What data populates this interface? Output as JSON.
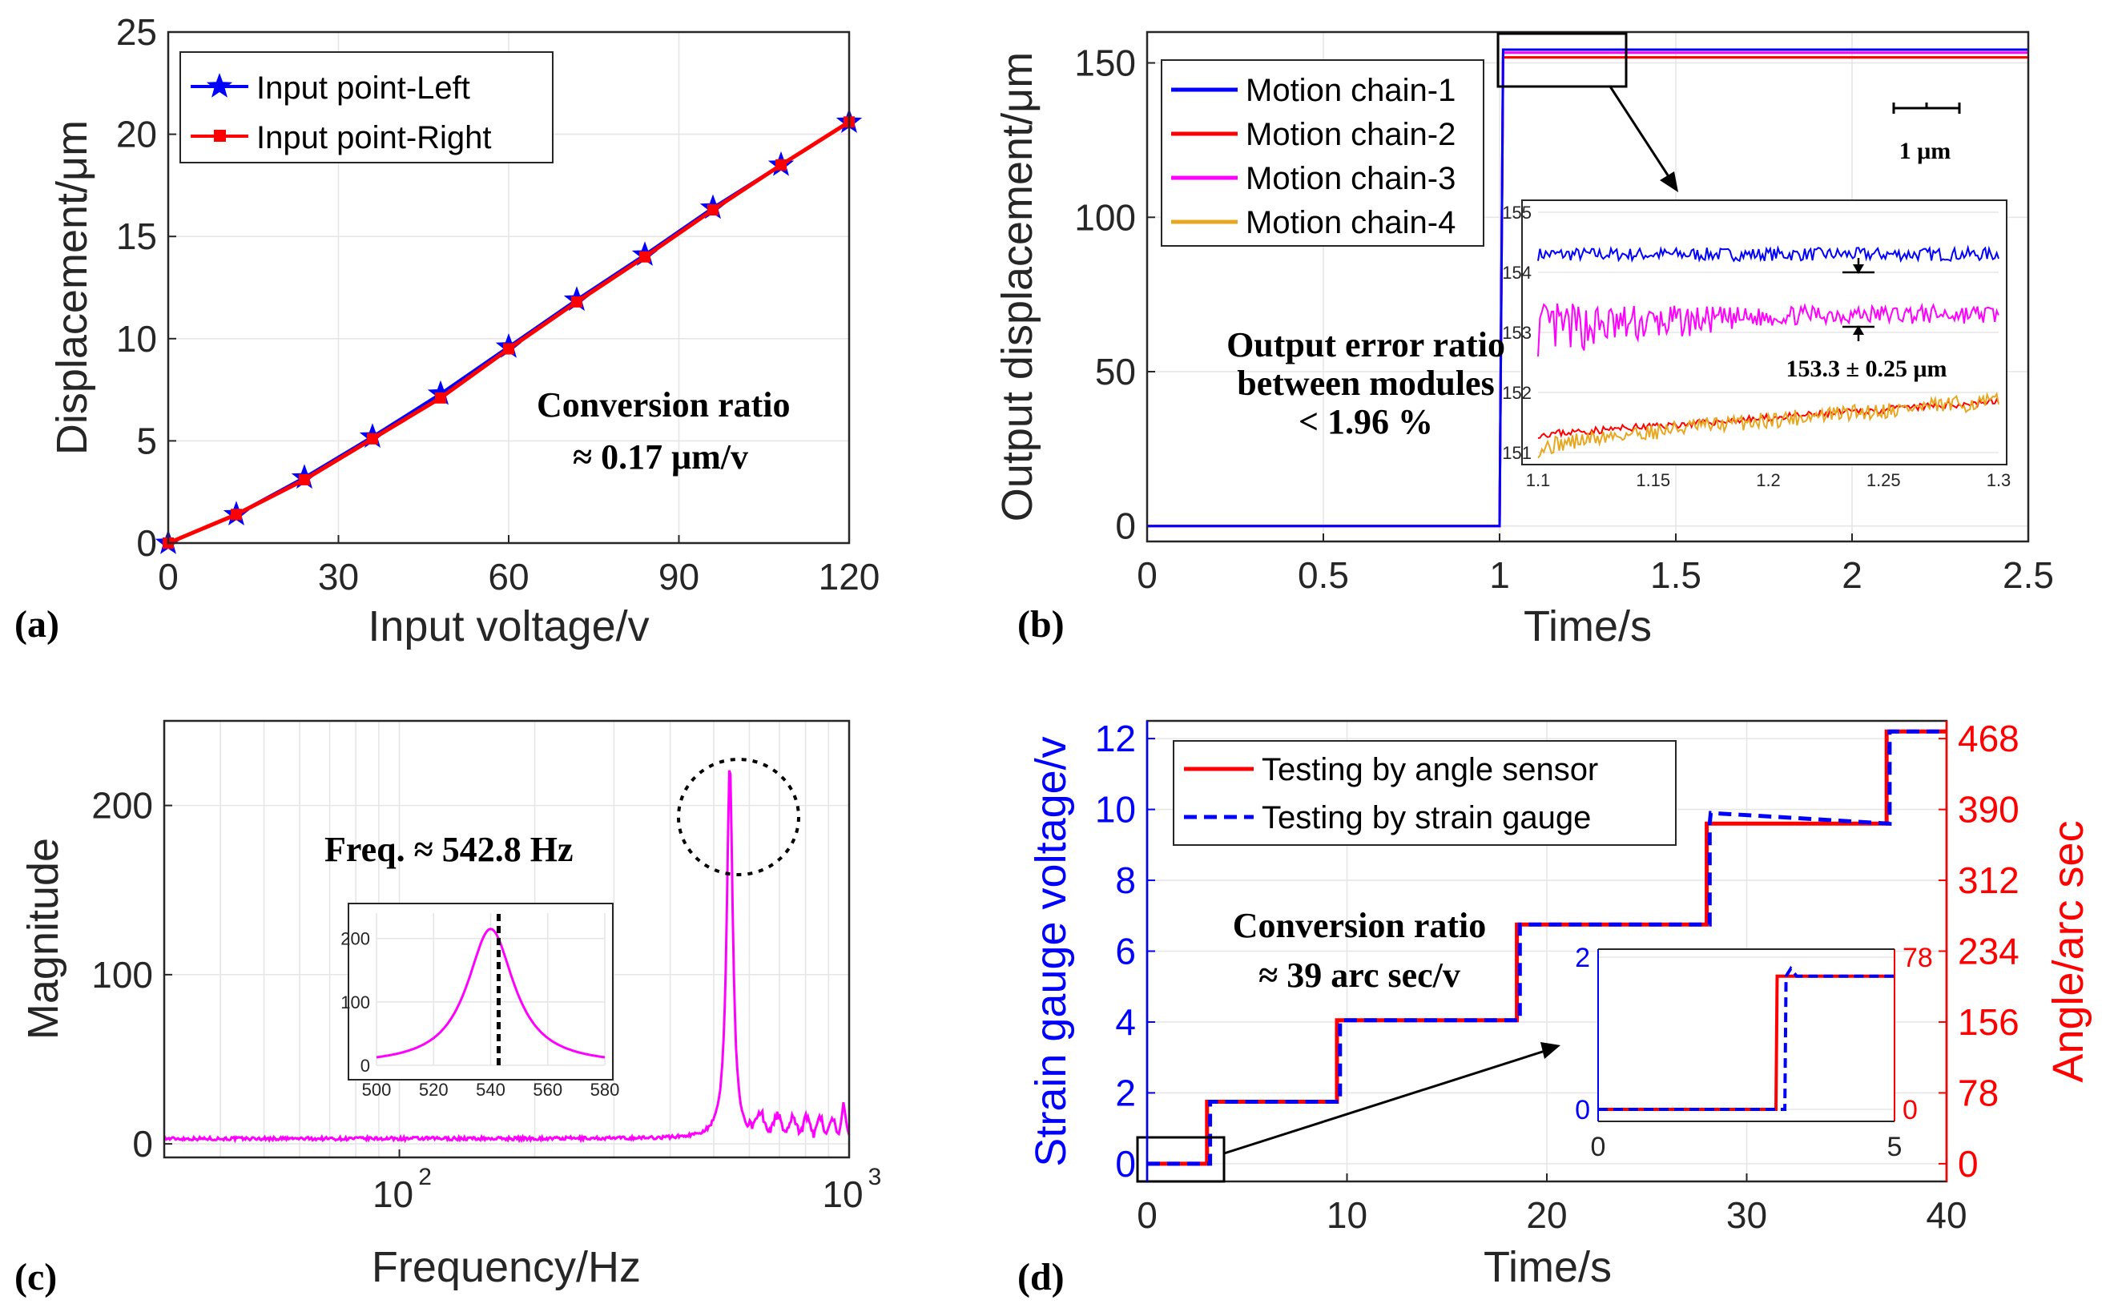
{
  "chart_data": [
    {
      "panel": "(a)",
      "type": "line",
      "xlabel": "Input voltage/v",
      "ylabel": "Displacement/μm",
      "xlim": [
        0,
        120
      ],
      "ylim": [
        0,
        25
      ],
      "xticks": [
        "0",
        "30",
        "60",
        "90",
        "120"
      ],
      "yticks": [
        "0",
        "5",
        "10",
        "15",
        "20",
        "25"
      ],
      "x": [
        0,
        12,
        24,
        36,
        48,
        60,
        72,
        84,
        96,
        108,
        120
      ],
      "series": [
        {
          "name": "Input point-Left",
          "color": "#0000ff",
          "marker": "star",
          "values": [
            0,
            1.4,
            3.2,
            5.2,
            7.3,
            9.6,
            11.9,
            14.1,
            16.4,
            18.5,
            20.6
          ]
        },
        {
          "name": "Input point-Right",
          "color": "#ff0000",
          "marker": "square",
          "values": [
            0,
            1.4,
            3.1,
            5.1,
            7.1,
            9.5,
            11.8,
            14.0,
            16.3,
            18.5,
            20.6
          ]
        }
      ],
      "annotation": [
        "Conversion ratio",
        "≈ 0.17 μm/v"
      ]
    },
    {
      "panel": "(b)",
      "type": "line",
      "xlabel": "Time/s",
      "ylabel": "Output displacement/μm",
      "xlim": [
        0,
        2.5
      ],
      "ylim": [
        -5,
        160
      ],
      "xticks": [
        "0",
        "0.5",
        "1",
        "1.5",
        "2",
        "2.5"
      ],
      "yticks": [
        "0",
        "50",
        "100",
        "150"
      ],
      "series": [
        {
          "name": "Motion chain-1",
          "color": "#0000ff",
          "final": 154.3
        },
        {
          "name": "Motion chain-2",
          "color": "#ff0000",
          "final": 151.8
        },
        {
          "name": "Motion chain-3",
          "color": "#ff00ff",
          "final": 153.3
        },
        {
          "name": "Motion chain-4",
          "color": "#e6a822",
          "final": 151.8
        }
      ],
      "step_time": 1.0,
      "scale_bar": "1 μm",
      "annotation": [
        "Output error ratio",
        "between modules",
        "< 1.96 %"
      ],
      "inset": {
        "xlim": [
          1.1,
          1.3
        ],
        "ylim": [
          151,
          155
        ],
        "xticks": [
          "1.1",
          "1.15",
          "1.2",
          "1.25",
          "1.3"
        ],
        "yticks": [
          "151",
          "152",
          "153",
          "154",
          "155"
        ],
        "label": "153.3 ± 0.25 μm"
      }
    },
    {
      "panel": "(c)",
      "type": "line",
      "xlabel": "Frequency/Hz",
      "ylabel": "Magnitude",
      "xscale": "log",
      "xlim": [
        30,
        1000
      ],
      "ylim": [
        -8,
        250
      ],
      "xticks": [
        "10",
        "10"
      ],
      "xtick_exp": [
        "2",
        "3"
      ],
      "yticks": [
        "0",
        "100",
        "200"
      ],
      "series": [
        {
          "name": "Magnitude",
          "color": "#ff00ff"
        }
      ],
      "peak": {
        "x": 542.8,
        "y": 225
      },
      "annotation": "Freq. ≈ 542.8 Hz",
      "inset": {
        "xlim": [
          500,
          580
        ],
        "ylim": [
          0,
          240
        ],
        "xticks": [
          "500",
          "520",
          "540",
          "560",
          "580"
        ],
        "yticks": [
          "0",
          "100",
          "200"
        ]
      }
    },
    {
      "panel": "(d)",
      "type": "line",
      "xlabel": "Time/s",
      "ylabel_left": "Strain gauge voltage/v",
      "ylabel_right": "Angle/arc sec",
      "xlim": [
        0,
        40
      ],
      "ylim_left": [
        -0.5,
        12.5
      ],
      "ylim_right": [
        -19.5,
        487.5
      ],
      "xticks": [
        "0",
        "10",
        "20",
        "30",
        "40"
      ],
      "yticks_left": [
        "0",
        "2",
        "4",
        "6",
        "8",
        "10",
        "12"
      ],
      "yticks_right": [
        "0",
        "78",
        "156",
        "234",
        "312",
        "390",
        "468"
      ],
      "steps": {
        "times": [
          0,
          3,
          9.5,
          18.5,
          28,
          37,
          40
        ],
        "levels": [
          0,
          1.75,
          4.05,
          6.75,
          9.6,
          12.2
        ]
      },
      "series": [
        {
          "name": "Testing by angle sensor",
          "color": "#ff0000",
          "style": "solid"
        },
        {
          "name": "Testing by strain gauge",
          "color": "#0000ff",
          "style": "dashed"
        }
      ],
      "annotation": [
        "Conversion ratio",
        "≈ 39 arc sec/v"
      ],
      "inset": {
        "xlim": [
          0,
          5
        ],
        "xticks": [
          "0",
          "5"
        ],
        "yticks_left": [
          "0",
          "2"
        ],
        "yticks_right": [
          "0",
          "78"
        ]
      }
    }
  ]
}
